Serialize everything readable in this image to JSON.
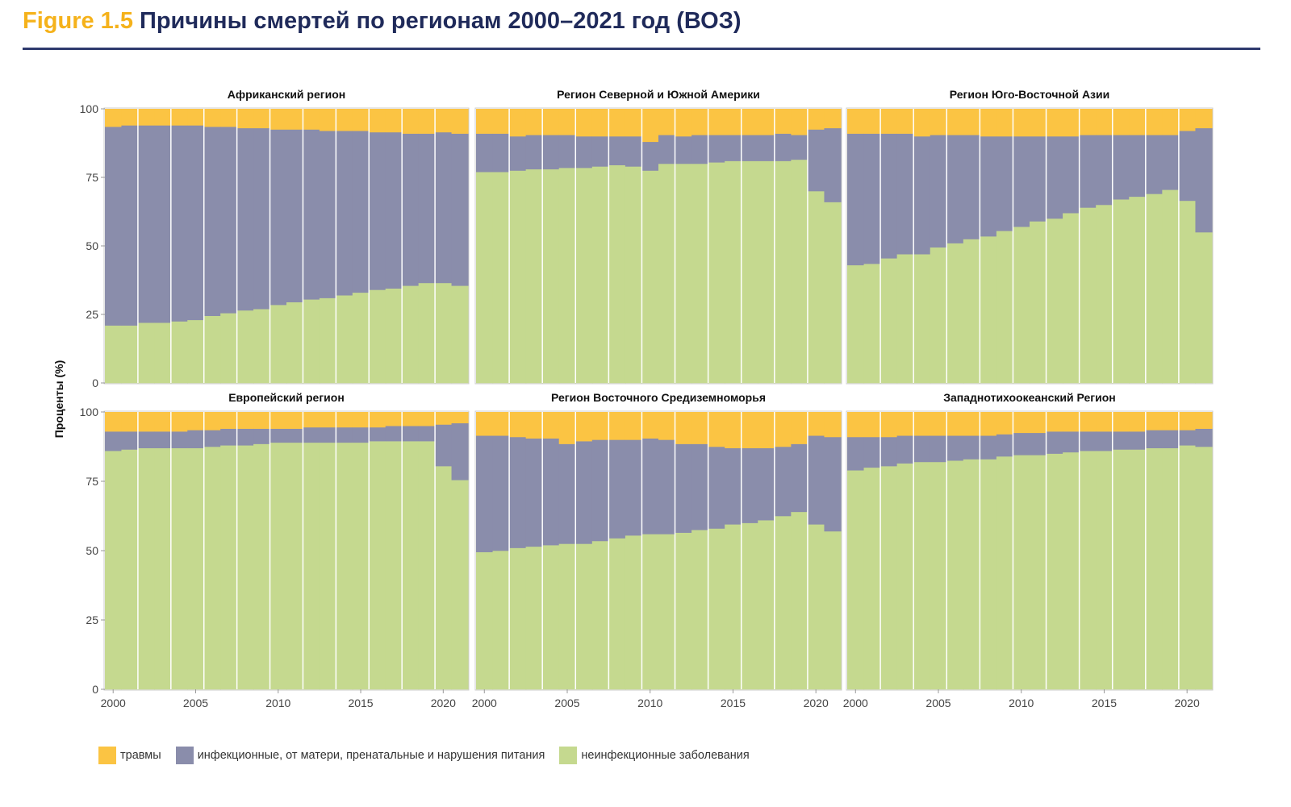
{
  "title": {
    "figure_label": "Figure 1.5",
    "text": "Причины смертей по регионам 2000–2021 год (ВОЗ)"
  },
  "colors": {
    "injuries": "#FBC443",
    "infectious": "#8A8DAB",
    "ncd": "#C5D98F",
    "title": "#1F2A5A",
    "figure_label": "#F5B21B"
  },
  "legend": [
    {
      "key": "injuries",
      "label": "травмы"
    },
    {
      "key": "infectious",
      "label": "инфекционные, от матери, пренатальные и нарушения питания"
    },
    {
      "key": "ncd",
      "label": "неинфекционные заболевания"
    }
  ],
  "chart_data": {
    "type": "bar",
    "stacked": true,
    "ylabel": "Проценты (%)",
    "ylim": [
      0,
      100
    ],
    "yticks": [
      0,
      25,
      50,
      75,
      100
    ],
    "xticks": [
      2000,
      2005,
      2010,
      2015,
      2020
    ],
    "legend_position": "bottom-left",
    "x": [
      2000,
      2001,
      2002,
      2003,
      2004,
      2005,
      2006,
      2007,
      2008,
      2009,
      2010,
      2011,
      2012,
      2013,
      2014,
      2015,
      2016,
      2017,
      2018,
      2019,
      2020,
      2021
    ],
    "panels": [
      {
        "title": "Африканский регион",
        "ncd": [
          21,
          21,
          22,
          22,
          22.5,
          23,
          24.5,
          25.5,
          26.5,
          27,
          28.5,
          29.5,
          30.5,
          31,
          32,
          33,
          34,
          34.5,
          35.5,
          36.5,
          36.5,
          35.5
        ],
        "infectious": [
          72.5,
          73,
          72,
          72,
          71.5,
          71,
          69,
          68,
          66.5,
          66,
          64,
          63,
          62,
          61,
          60,
          59,
          57.5,
          57,
          55.5,
          54.5,
          55,
          55.5
        ],
        "injuries": [
          6.5,
          6,
          6,
          6,
          6,
          6,
          6.5,
          6.5,
          7,
          7,
          7.5,
          7.5,
          7.5,
          8,
          8,
          8,
          8.5,
          8.5,
          9,
          9,
          8.5,
          9
        ]
      },
      {
        "title": "Регион Северной и Южной Америки",
        "ncd": [
          77,
          77,
          77.5,
          78,
          78,
          78.5,
          78.5,
          79,
          79.5,
          79,
          77.5,
          80,
          80,
          80,
          80.5,
          81,
          81,
          81,
          81,
          81.5,
          70,
          66
        ],
        "infectious": [
          14,
          14,
          12.5,
          12.5,
          12.5,
          12,
          11.5,
          11,
          10.5,
          11,
          10.5,
          10.5,
          10,
          10.5,
          10,
          9.5,
          9.5,
          9.5,
          10,
          9,
          22.5,
          27
        ],
        "injuries": [
          9,
          9,
          10,
          9.5,
          9.5,
          9.5,
          10,
          10,
          10,
          10,
          12,
          9.5,
          10,
          9.5,
          9.5,
          9.5,
          9.5,
          9.5,
          9,
          9.5,
          7.5,
          7
        ]
      },
      {
        "title": "Регион Юго-Восточной Азии",
        "ncd": [
          43,
          43.5,
          45.5,
          47,
          47,
          49.5,
          51,
          52.5,
          53.5,
          55.5,
          57,
          59,
          60,
          62,
          64,
          65,
          67,
          68,
          69,
          70.5,
          66.5,
          55
        ],
        "infectious": [
          48,
          47.5,
          45.5,
          44,
          43,
          41,
          39.5,
          38,
          36.5,
          34.5,
          33,
          31,
          30,
          28,
          26.5,
          25.5,
          23.5,
          22.5,
          21.5,
          20,
          25.5,
          38
        ],
        "injuries": [
          9,
          9,
          9,
          9,
          10,
          9.5,
          9.5,
          9.5,
          10,
          10,
          10,
          10,
          10,
          10,
          9.5,
          9.5,
          9.5,
          9.5,
          9.5,
          9.5,
          8,
          7
        ]
      },
      {
        "title": "Европейский регион",
        "ncd": [
          86,
          86.5,
          87,
          87,
          87,
          87,
          87.5,
          88,
          88,
          88.5,
          89,
          89,
          89,
          89,
          89,
          89,
          89.5,
          89.5,
          89.5,
          89.5,
          80.5,
          75.5
        ],
        "infectious": [
          7,
          6.5,
          6,
          6,
          6,
          6.5,
          6,
          6,
          6,
          5.5,
          5,
          5,
          5.5,
          5.5,
          5.5,
          5.5,
          5,
          5.5,
          5.5,
          5.5,
          15,
          20.5
        ],
        "injuries": [
          7,
          7,
          7,
          7,
          7,
          6.5,
          6.5,
          6,
          6,
          6,
          6,
          6,
          5.5,
          5.5,
          5.5,
          5.5,
          5.5,
          5,
          5,
          5,
          4.5,
          4
        ]
      },
      {
        "title": "Регион Восточного Средиземноморья",
        "ncd": [
          49.5,
          50,
          51,
          51.5,
          52,
          52.5,
          52.5,
          53.5,
          54.5,
          55.5,
          56,
          56,
          56.5,
          57.5,
          58,
          59.5,
          60,
          61,
          62.5,
          64,
          59.5,
          57
        ],
        "infectious": [
          42,
          41.5,
          40,
          39,
          38.5,
          36,
          37,
          36.5,
          35.5,
          34.5,
          34.5,
          34,
          32,
          31,
          29.5,
          27.5,
          27,
          26,
          25,
          24.5,
          32,
          34
        ],
        "injuries": [
          8.5,
          8.5,
          9,
          9.5,
          9.5,
          11.5,
          10.5,
          10,
          10,
          10,
          9.5,
          10,
          11.5,
          11.5,
          12.5,
          13,
          13,
          13,
          12.5,
          11.5,
          8.5,
          9
        ]
      },
      {
        "title": "Западнотихоокеанский Регион",
        "ncd": [
          79,
          80,
          80.5,
          81.5,
          82,
          82,
          82.5,
          83,
          83,
          84,
          84.5,
          84.5,
          85,
          85.5,
          86,
          86,
          86.5,
          86.5,
          87,
          87,
          88,
          87.5
        ],
        "infectious": [
          12,
          11,
          10.5,
          10,
          9.5,
          9.5,
          9,
          8.5,
          8.5,
          8,
          8,
          8,
          8,
          7.5,
          7,
          7,
          6.5,
          6.5,
          6.5,
          6.5,
          5.5,
          6.5
        ],
        "injuries": [
          9,
          9,
          9,
          8.5,
          8.5,
          8.5,
          8.5,
          8.5,
          8.5,
          8,
          7.5,
          7.5,
          7,
          7,
          7,
          7,
          7,
          7,
          6.5,
          6.5,
          6.5,
          6
        ]
      }
    ]
  }
}
